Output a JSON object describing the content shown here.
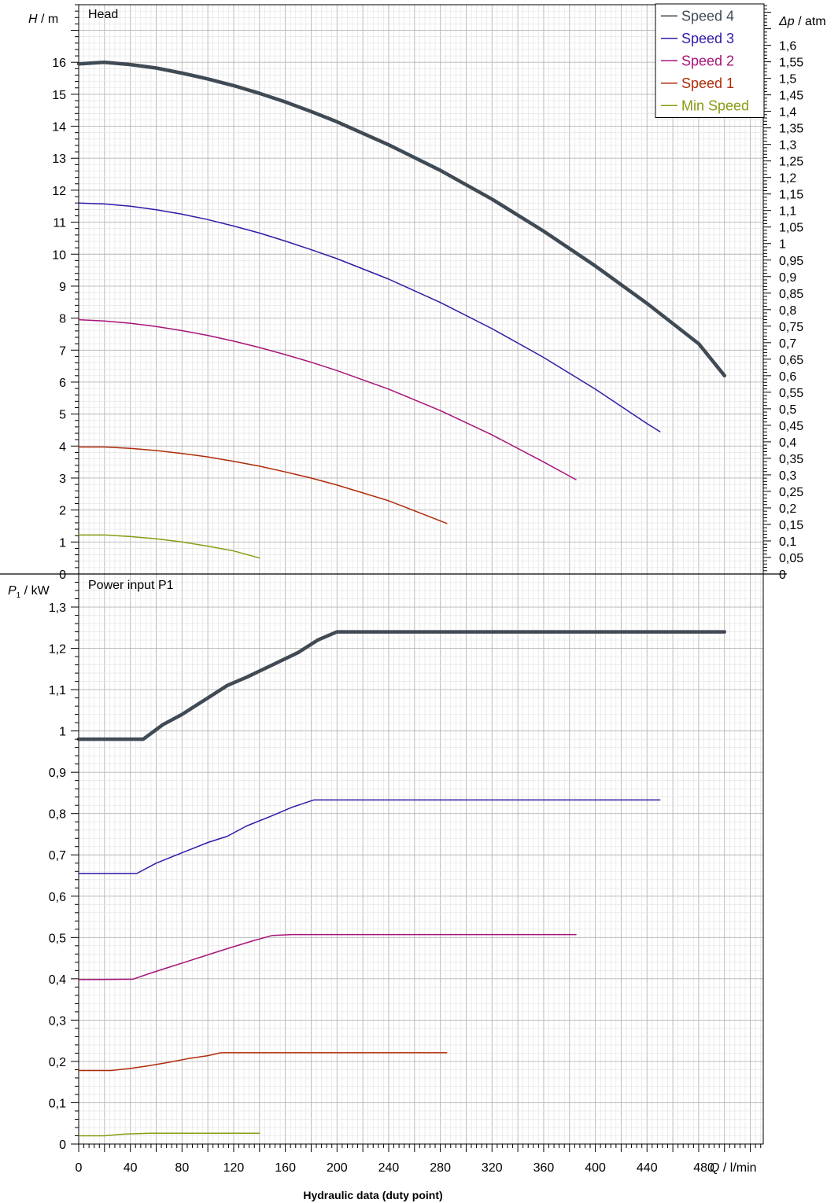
{
  "chart_data": [
    {
      "panel": "head",
      "type": "line",
      "title": "Head",
      "ylabel_var": "H",
      "ylabel_unit": " / m",
      "y2label_var": "Δp",
      "y2label_unit": " / atm",
      "xlabel_var": "Q",
      "xlabel_unit": " / l/min",
      "xlim": [
        0,
        530
      ],
      "ylim": [
        0,
        17.8
      ],
      "y_ticks": [
        "0",
        "1",
        "2",
        "3",
        "4",
        "5",
        "6",
        "7",
        "8",
        "9",
        "10",
        "11",
        "12",
        "13",
        "14",
        "15",
        "16"
      ],
      "y2_ticks": [
        "0",
        "0,05",
        "0,1",
        "0,15",
        "0,2",
        "0,25",
        "0,3",
        "0,35",
        "0,4",
        "0,45",
        "0,5",
        "0,55",
        "0,6",
        "0,65",
        "0,7",
        "0,75",
        "0,8",
        "0,85",
        "0,9",
        "0,95",
        "1",
        "1,05",
        "1,1",
        "1,15",
        "1,2",
        "1,25",
        "1,3",
        "1,35",
        "1,4",
        "1,45",
        "1,5",
        "1,55",
        "1,6"
      ],
      "series": [
        {
          "name": "Speed 4",
          "color": "#404a55",
          "width": 4.5,
          "x": [
            0,
            20,
            40,
            60,
            80,
            100,
            120,
            140,
            160,
            180,
            200,
            240,
            280,
            320,
            360,
            400,
            440,
            480,
            500
          ],
          "y": [
            15.95,
            16.0,
            15.93,
            15.82,
            15.66,
            15.48,
            15.27,
            15.03,
            14.76,
            14.46,
            14.14,
            13.42,
            12.62,
            11.72,
            10.72,
            9.63,
            8.46,
            7.2,
            6.2
          ]
        },
        {
          "name": "Speed 3",
          "color": "#3318a8",
          "width": 1.5,
          "x": [
            0,
            20,
            40,
            60,
            80,
            100,
            120,
            140,
            160,
            180,
            200,
            240,
            280,
            320,
            360,
            400,
            440,
            450
          ],
          "y": [
            11.6,
            11.57,
            11.5,
            11.39,
            11.25,
            11.08,
            10.88,
            10.66,
            10.41,
            10.14,
            9.86,
            9.22,
            8.49,
            7.67,
            6.77,
            5.78,
            4.7,
            4.45
          ]
        },
        {
          "name": "Speed 2",
          "color": "#a8137a",
          "width": 1.5,
          "x": [
            0,
            20,
            40,
            60,
            80,
            100,
            120,
            140,
            160,
            180,
            200,
            240,
            280,
            320,
            360,
            385
          ],
          "y": [
            7.95,
            7.91,
            7.84,
            7.74,
            7.61,
            7.46,
            7.28,
            7.08,
            6.86,
            6.62,
            6.36,
            5.78,
            5.11,
            4.35,
            3.5,
            2.95
          ]
        },
        {
          "name": "Speed 1",
          "color": "#b02a0a",
          "width": 1.5,
          "x": [
            0,
            20,
            40,
            60,
            80,
            100,
            120,
            140,
            160,
            180,
            200,
            240,
            285
          ],
          "y": [
            3.97,
            3.97,
            3.93,
            3.86,
            3.77,
            3.66,
            3.52,
            3.37,
            3.19,
            3.0,
            2.78,
            2.29,
            1.58
          ]
        },
        {
          "name": "Min Speed",
          "color": "#8a9a12",
          "width": 1.5,
          "x": [
            0,
            20,
            40,
            60,
            80,
            100,
            120,
            140
          ],
          "y": [
            1.22,
            1.22,
            1.17,
            1.1,
            1.0,
            0.87,
            0.72,
            0.5
          ]
        }
      ]
    },
    {
      "panel": "power",
      "type": "line",
      "title": "Power input P1",
      "ylabel_var": "P",
      "ylabel_sub": "1",
      "ylabel_unit": " / kW",
      "xlim": [
        0,
        530
      ],
      "ylim": [
        0,
        1.38
      ],
      "y_ticks": [
        "0",
        "0,1",
        "0,2",
        "0,3",
        "0,4",
        "0,5",
        "0,6",
        "0,7",
        "0,8",
        "0,9",
        "1",
        "1,1",
        "1,2",
        "1,3"
      ],
      "x_ticks": [
        "0",
        "40",
        "80",
        "120",
        "160",
        "200",
        "240",
        "280",
        "320",
        "360",
        "400",
        "440",
        "480"
      ],
      "series": [
        {
          "name": "Speed 4",
          "color": "#404a55",
          "width": 4.5,
          "x": [
            0,
            50,
            65,
            80,
            100,
            115,
            130,
            150,
            170,
            185,
            200,
            300,
            400,
            500
          ],
          "y": [
            0.98,
            0.98,
            1.015,
            1.04,
            1.08,
            1.11,
            1.13,
            1.16,
            1.19,
            1.22,
            1.24,
            1.24,
            1.24,
            1.24
          ]
        },
        {
          "name": "Speed 3",
          "color": "#3318a8",
          "width": 1.5,
          "x": [
            0,
            45,
            60,
            80,
            100,
            115,
            130,
            150,
            165,
            182,
            300,
            450
          ],
          "y": [
            0.655,
            0.655,
            0.68,
            0.705,
            0.73,
            0.745,
            0.77,
            0.795,
            0.815,
            0.833,
            0.833,
            0.833
          ]
        },
        {
          "name": "Speed 2",
          "color": "#a8137a",
          "width": 1.5,
          "x": [
            0,
            42,
            55,
            70,
            85,
            100,
            115,
            135,
            150,
            165,
            300,
            385
          ],
          "y": [
            0.398,
            0.399,
            0.413,
            0.428,
            0.443,
            0.458,
            0.473,
            0.492,
            0.505,
            0.507,
            0.507,
            0.507
          ]
        },
        {
          "name": "Speed 1",
          "color": "#b02a0a",
          "width": 1.5,
          "x": [
            0,
            25,
            40,
            55,
            70,
            85,
            100,
            110,
            160,
            285
          ],
          "y": [
            0.178,
            0.178,
            0.183,
            0.19,
            0.198,
            0.207,
            0.214,
            0.221,
            0.221,
            0.221
          ]
        },
        {
          "name": "Min Speed",
          "color": "#8a9a12",
          "width": 1.5,
          "x": [
            0,
            20,
            35,
            55,
            80,
            140
          ],
          "y": [
            0.02,
            0.02,
            0.024,
            0.026,
            0.026,
            0.026
          ]
        }
      ]
    }
  ],
  "legend": [
    {
      "name": "Speed 4",
      "color": "#404a55"
    },
    {
      "name": "Speed 3",
      "color": "#3318a8"
    },
    {
      "name": "Speed 2",
      "color": "#a8137a"
    },
    {
      "name": "Speed 1",
      "color": "#b02a0a"
    },
    {
      "name": "Min Speed",
      "color": "#8a9a12"
    }
  ],
  "footer": "Hydraulic data (duty point)"
}
